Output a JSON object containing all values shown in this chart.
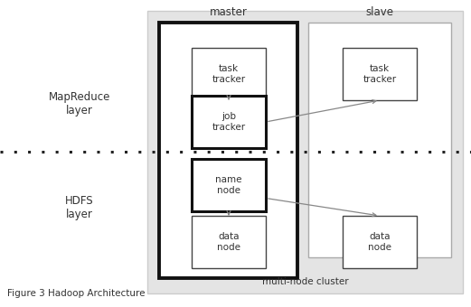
{
  "title": "Figure 3 Hadoop Architecture",
  "label_master": "master",
  "label_slave": "slave",
  "label_multinode": "multi-node cluster",
  "label_mapreduce": "MapReduce\nlayer",
  "label_hdfs": "HDFS\nlayer",
  "fig_w": 5.21,
  "fig_h": 3.4,
  "dpi": 100,
  "bg": "#ffffff",
  "cluster_fc": "#e4e4e4",
  "cluster_ec": "#cccccc",
  "master_ec": "#111111",
  "slave_ec": "#aaaaaa",
  "box_ec": "#444444",
  "bold_ec": "#111111",
  "text_color": "#333333",
  "arrow_color": "#888888",
  "dot_color": "#222222"
}
